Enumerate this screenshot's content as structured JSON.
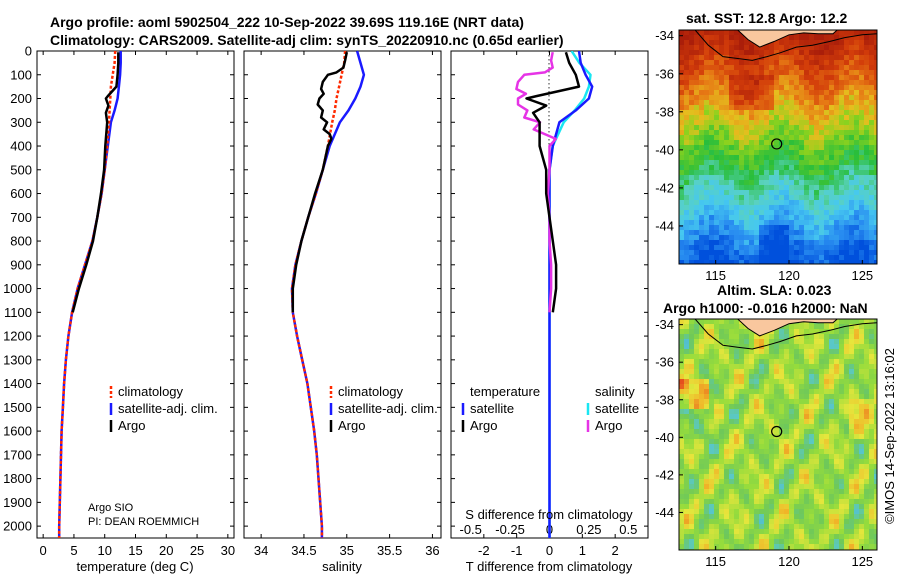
{
  "title_line1": "Argo profile: aoml 5902504_222 10-Sep-2022 39.69S 119.16E (NRT data)",
  "title_line2": "Climatology: CARS2009. Satellite-adj clim: synTS_20220910.nc (0.65d earlier)",
  "map1_title": "sat. SST: 12.8 Argo: 12.2",
  "map2_title_line1": "Altim. SLA: 0.023",
  "map2_title_line2": "Argo h1000: -0.016 h2000: NaN",
  "credit": "©IMOS 14-Sep-2022 13:16:02",
  "argo_info_line1": "Argo SIO",
  "argo_info_line2": "PI: DEAN ROEMMICH",
  "colors": {
    "climatology": "#ff2a00",
    "satellite": "#1a1aff",
    "argo": "#000000",
    "sal_satellite": "#19e6f2",
    "sal_argo": "#e633e6",
    "land": "#f9c79e"
  },
  "chart_data": [
    {
      "type": "line",
      "panel": "temperature",
      "xlabel": "temperature (deg C)",
      "ylabel": "",
      "xlim": [
        -1,
        31
      ],
      "ylim": [
        2050,
        0
      ],
      "xticks": [
        0,
        5,
        10,
        15,
        20,
        25,
        30
      ],
      "yticks": [
        0,
        100,
        200,
        300,
        400,
        500,
        600,
        700,
        800,
        900,
        1000,
        1100,
        1200,
        1300,
        1400,
        1500,
        1600,
        1700,
        1800,
        1900,
        2000
      ],
      "legend": [
        "climatology",
        "satellite-adj. clim.",
        "Argo"
      ],
      "series": [
        {
          "name": "climatology",
          "points": [
            [
              11.7,
              0
            ],
            [
              11.6,
              50
            ],
            [
              11.3,
              100
            ],
            [
              11.0,
              150
            ],
            [
              10.9,
              200
            ],
            [
              10.8,
              250
            ],
            [
              10.7,
              300
            ],
            [
              10.4,
              400
            ],
            [
              10.0,
              500
            ],
            [
              9.5,
              600
            ],
            [
              8.8,
              700
            ],
            [
              8.0,
              800
            ],
            [
              6.8,
              900
            ],
            [
              5.6,
              1000
            ],
            [
              4.7,
              1100
            ],
            [
              4.1,
              1200
            ],
            [
              3.7,
              1300
            ],
            [
              3.4,
              1400
            ],
            [
              3.2,
              1500
            ],
            [
              3.0,
              1600
            ],
            [
              2.9,
              1700
            ],
            [
              2.8,
              1800
            ],
            [
              2.7,
              1900
            ],
            [
              2.6,
              2000
            ],
            [
              2.6,
              2050
            ]
          ]
        },
        {
          "name": "satellite-adj. clim.",
          "points": [
            [
              12.6,
              0
            ],
            [
              12.6,
              50
            ],
            [
              12.5,
              100
            ],
            [
              12.3,
              150
            ],
            [
              12.1,
              200
            ],
            [
              11.6,
              250
            ],
            [
              11.0,
              300
            ],
            [
              10.5,
              400
            ],
            [
              10.0,
              500
            ],
            [
              9.5,
              600
            ],
            [
              8.8,
              700
            ],
            [
              8.0,
              800
            ],
            [
              6.8,
              900
            ],
            [
              5.6,
              1000
            ],
            [
              4.7,
              1100
            ],
            [
              4.1,
              1200
            ],
            [
              3.7,
              1300
            ],
            [
              3.4,
              1400
            ],
            [
              3.2,
              1500
            ],
            [
              3.0,
              1600
            ],
            [
              2.9,
              1700
            ],
            [
              2.8,
              1800
            ],
            [
              2.7,
              1900
            ],
            [
              2.6,
              2000
            ],
            [
              2.6,
              2050
            ]
          ]
        },
        {
          "name": "Argo",
          "points": [
            [
              12.2,
              5
            ],
            [
              12.2,
              50
            ],
            [
              12.1,
              100
            ],
            [
              11.9,
              150
            ],
            [
              10.5,
              190
            ],
            [
              10.2,
              200
            ],
            [
              10.6,
              230
            ],
            [
              10.2,
              260
            ],
            [
              10.4,
              300
            ],
            [
              10.1,
              400
            ],
            [
              9.9,
              500
            ],
            [
              9.4,
              600
            ],
            [
              8.8,
              700
            ],
            [
              8.1,
              800
            ],
            [
              7.0,
              900
            ],
            [
              5.8,
              1000
            ],
            [
              4.8,
              1100
            ]
          ]
        }
      ]
    },
    {
      "type": "line",
      "panel": "salinity",
      "xlabel": "salinity",
      "xlim": [
        33.8,
        36.1
      ],
      "ylim": [
        2050,
        0
      ],
      "xticks": [
        34,
        34.5,
        35,
        35.5,
        36
      ],
      "legend": [
        "climatology",
        "satellite-adj. clim.",
        "Argo"
      ],
      "series": [
        {
          "name": "climatology",
          "points": [
            [
              34.98,
              0
            ],
            [
              34.97,
              50
            ],
            [
              34.94,
              100
            ],
            [
              34.91,
              150
            ],
            [
              34.88,
              200
            ],
            [
              34.86,
              250
            ],
            [
              34.83,
              300
            ],
            [
              34.78,
              400
            ],
            [
              34.72,
              500
            ],
            [
              34.64,
              600
            ],
            [
              34.55,
              700
            ],
            [
              34.47,
              800
            ],
            [
              34.4,
              900
            ],
            [
              34.36,
              1000
            ],
            [
              34.37,
              1100
            ],
            [
              34.42,
              1200
            ],
            [
              34.48,
              1300
            ],
            [
              34.54,
              1400
            ],
            [
              34.58,
              1500
            ],
            [
              34.62,
              1600
            ],
            [
              34.65,
              1700
            ],
            [
              34.67,
              1800
            ],
            [
              34.69,
              1900
            ],
            [
              34.71,
              2000
            ],
            [
              34.71,
              2050
            ]
          ]
        },
        {
          "name": "satellite-adj. clim.",
          "points": [
            [
              35.12,
              0
            ],
            [
              35.16,
              50
            ],
            [
              35.2,
              100
            ],
            [
              35.16,
              150
            ],
            [
              35.1,
              200
            ],
            [
              35.02,
              250
            ],
            [
              34.92,
              300
            ],
            [
              34.8,
              400
            ],
            [
              34.72,
              500
            ],
            [
              34.64,
              600
            ],
            [
              34.55,
              700
            ],
            [
              34.47,
              800
            ],
            [
              34.4,
              900
            ],
            [
              34.36,
              1000
            ],
            [
              34.37,
              1100
            ],
            [
              34.42,
              1200
            ],
            [
              34.48,
              1300
            ],
            [
              34.54,
              1400
            ],
            [
              34.58,
              1500
            ],
            [
              34.62,
              1600
            ],
            [
              34.65,
              1700
            ],
            [
              34.67,
              1800
            ],
            [
              34.69,
              1900
            ],
            [
              34.71,
              2000
            ],
            [
              34.71,
              2050
            ]
          ]
        },
        {
          "name": "Argo",
          "points": [
            [
              35.0,
              5
            ],
            [
              34.98,
              40
            ],
            [
              34.96,
              70
            ],
            [
              34.88,
              90
            ],
            [
              34.78,
              100
            ],
            [
              34.72,
              130
            ],
            [
              34.7,
              160
            ],
            [
              34.73,
              180
            ],
            [
              34.68,
              200
            ],
            [
              34.66,
              225
            ],
            [
              34.72,
              250
            ],
            [
              34.7,
              280
            ],
            [
              34.77,
              300
            ],
            [
              34.73,
              330
            ],
            [
              34.8,
              350
            ],
            [
              34.82,
              370
            ],
            [
              34.78,
              400
            ],
            [
              34.72,
              500
            ],
            [
              34.63,
              600
            ],
            [
              34.55,
              700
            ],
            [
              34.47,
              800
            ],
            [
              34.41,
              900
            ],
            [
              34.37,
              1000
            ],
            [
              34.37,
              1100
            ]
          ]
        }
      ]
    },
    {
      "type": "line",
      "panel": "difference",
      "xlabel": "T difference from climatology",
      "upper_axis_label": "S difference from climatology",
      "xlim": [
        -3,
        3
      ],
      "ylim": [
        2050,
        0
      ],
      "xticks": [
        -2,
        -1,
        0,
        1,
        2
      ],
      "s_ticks": [
        -0.5,
        -0.25,
        0,
        0.25,
        0.5
      ],
      "s_tick_labels": [
        "-0.5",
        "-0.25",
        "0",
        "0.25",
        "0.5"
      ],
      "legend_headers": [
        "temperature",
        "salinity"
      ],
      "legend": [
        "satellite",
        "Argo",
        "satellite",
        "Argo"
      ],
      "series": [
        {
          "name": "temperature satellite",
          "points": [
            [
              0.9,
              0
            ],
            [
              0.95,
              50
            ],
            [
              1.1,
              100
            ],
            [
              1.3,
              150
            ],
            [
              1.2,
              200
            ],
            [
              0.8,
              250
            ],
            [
              0.3,
              300
            ],
            [
              0.1,
              400
            ],
            [
              0,
              500
            ],
            [
              0,
              600
            ],
            [
              0,
              700
            ],
            [
              0,
              800
            ],
            [
              0,
              900
            ],
            [
              0,
              1000
            ],
            [
              0,
              1100
            ],
            [
              0,
              1200
            ],
            [
              0,
              1300
            ],
            [
              0,
              1400
            ],
            [
              0,
              1500
            ],
            [
              0,
              1600
            ],
            [
              0,
              1700
            ],
            [
              0,
              1800
            ],
            [
              0,
              1900
            ],
            [
              0,
              2000
            ],
            [
              0,
              2050
            ]
          ]
        },
        {
          "name": "temperature Argo",
          "points": [
            [
              0.5,
              5
            ],
            [
              0.6,
              50
            ],
            [
              0.8,
              100
            ],
            [
              0.9,
              150
            ],
            [
              -0.4,
              190
            ],
            [
              -0.7,
              200
            ],
            [
              -0.1,
              230
            ],
            [
              -0.5,
              260
            ],
            [
              -0.3,
              300
            ],
            [
              -0.3,
              400
            ],
            [
              -0.1,
              500
            ],
            [
              -0.1,
              600
            ],
            [
              0,
              700
            ],
            [
              0.1,
              800
            ],
            [
              0.2,
              900
            ],
            [
              0.2,
              1000
            ],
            [
              0.1,
              1100
            ]
          ]
        },
        {
          "name": "salinity satellite",
          "points": [
            [
              0.14,
              0
            ],
            [
              0.19,
              50
            ],
            [
              0.26,
              100
            ],
            [
              0.25,
              150
            ],
            [
              0.22,
              200
            ],
            [
              0.16,
              250
            ],
            [
              0.09,
              300
            ],
            [
              0.02,
              400
            ],
            [
              0,
              500
            ],
            [
              0,
              600
            ],
            [
              0,
              700
            ],
            [
              0,
              800
            ],
            [
              0,
              900
            ],
            [
              0,
              1000
            ],
            [
              0,
              1100
            ],
            [
              0,
              1200
            ],
            [
              0,
              1300
            ],
            [
              0,
              1400
            ],
            [
              0,
              1500
            ],
            [
              0,
              1600
            ],
            [
              0,
              1700
            ],
            [
              0,
              1800
            ],
            [
              0,
              1900
            ],
            [
              0,
              2000
            ],
            [
              0,
              2050
            ]
          ]
        },
        {
          "name": "salinity Argo",
          "points": [
            [
              0.02,
              5
            ],
            [
              0.01,
              40
            ],
            [
              0.02,
              70
            ],
            [
              -0.03,
              90
            ],
            [
              -0.16,
              100
            ],
            [
              -0.2,
              130
            ],
            [
              -0.21,
              160
            ],
            [
              -0.15,
              180
            ],
            [
              -0.2,
              200
            ],
            [
              -0.2,
              225
            ],
            [
              -0.14,
              250
            ],
            [
              -0.16,
              280
            ],
            [
              -0.06,
              300
            ],
            [
              -0.1,
              330
            ],
            [
              -0.03,
              350
            ],
            [
              0.04,
              370
            ],
            [
              0,
              400
            ],
            [
              0,
              500
            ],
            [
              -0.01,
              600
            ],
            [
              0,
              700
            ],
            [
              0,
              800
            ],
            [
              0.01,
              900
            ],
            [
              0.01,
              1000
            ],
            [
              0,
              1100
            ]
          ]
        }
      ]
    },
    {
      "type": "heatmap",
      "panel": "sst-map",
      "title": "sat. SST: 12.8 Argo: 12.2",
      "xlim": [
        112.5,
        126
      ],
      "ylim": [
        -46,
        -33.7
      ],
      "xticks": [
        115,
        120,
        125
      ],
      "yticks": [
        -34,
        -36,
        -38,
        -40,
        -42,
        -44
      ],
      "argo_position": [
        119.16,
        -39.69
      ]
    },
    {
      "type": "heatmap",
      "panel": "sla-map",
      "title": "Altim. SLA: 0.023",
      "xlim": [
        112.5,
        126
      ],
      "ylim": [
        -46,
        -33.7
      ],
      "xticks": [
        115,
        120,
        125
      ],
      "yticks": [
        -34,
        -36,
        -38,
        -40,
        -42,
        -44
      ],
      "argo_position": [
        119.16,
        -39.69
      ]
    }
  ]
}
